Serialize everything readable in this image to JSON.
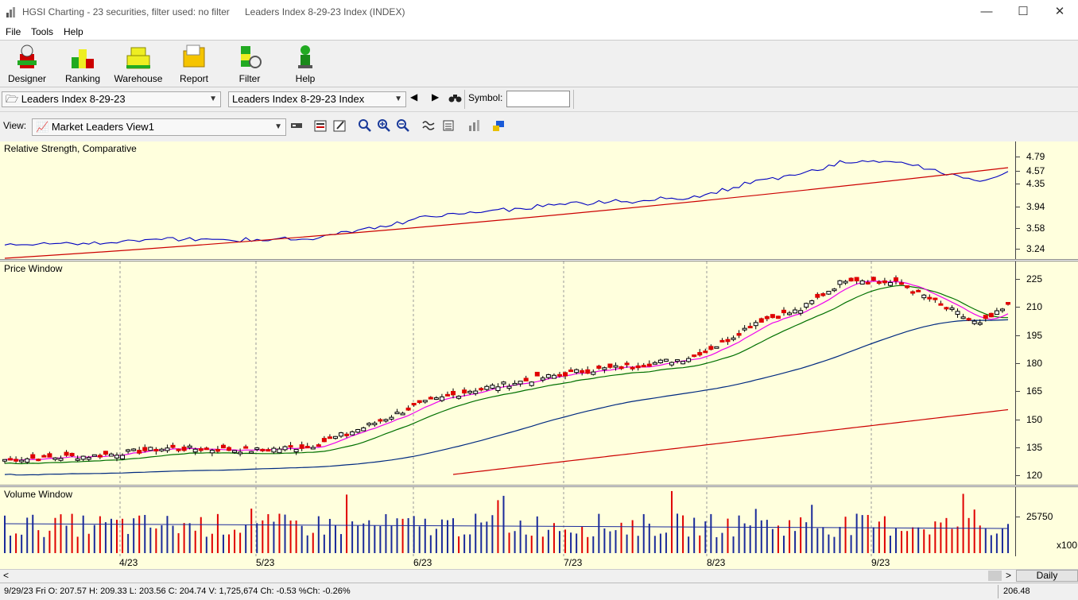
{
  "window": {
    "title": "HGSI Charting - 23 securities, filter used: no filter",
    "subtitle": "Leaders Index 8-29-23 Index (INDEX)",
    "minimize": "—",
    "maximize": "☐",
    "close": "✕"
  },
  "menu": [
    "File",
    "Tools",
    "Help"
  ],
  "toolbar": [
    {
      "label": "Designer",
      "icon": "designer-icon"
    },
    {
      "label": "Ranking",
      "icon": "ranking-icon"
    },
    {
      "label": "Warehouse",
      "icon": "warehouse-icon"
    },
    {
      "label": "Report",
      "icon": "report-icon"
    },
    {
      "label": "Filter",
      "icon": "filter-icon"
    },
    {
      "label": "Help",
      "icon": "help-icon"
    }
  ],
  "selectors": {
    "list": "Leaders Index 8-29-23",
    "security": "Leaders Index 8-29-23 Index",
    "symbol_label": "Symbol:",
    "symbol_value": ""
  },
  "view": {
    "label": "View:",
    "value": "Market Leaders View1"
  },
  "panels": {
    "rs": {
      "label": "Relative Strength, Comparative",
      "ticks": [
        "4.79",
        "4.57",
        "4.35",
        "3.94",
        "3.58",
        "3.24"
      ]
    },
    "price": {
      "label": "Price Window",
      "ticks": [
        "225",
        "210",
        "195",
        "180",
        "165",
        "150",
        "135",
        "120"
      ]
    },
    "volume": {
      "label": "Volume Window",
      "ticks": [
        "25750"
      ],
      "multiplier": "x100"
    }
  },
  "date_labels": [
    "4/23",
    "5/23",
    "6/23",
    "7/23",
    "8/23",
    "9/23"
  ],
  "scroll": {
    "period": "Daily",
    "left": "<",
    "right": ">"
  },
  "status": {
    "text": "9/29/23 Fri O: 207.57 H: 209.33 L: 203.56 C: 204.74 V: 1,725,674 Ch: -0.53 %Ch: -0.26%",
    "value": "206.48"
  },
  "colors": {
    "panel_bg": "#ffffdd",
    "up": "#ffffff",
    "down": "#e00000",
    "rs_line": "#0000c0",
    "avg_long": "#cc0000",
    "avg_mid": "#002a80",
    "avg_short": "#007000",
    "avg_fast": "#ee00ee"
  }
}
